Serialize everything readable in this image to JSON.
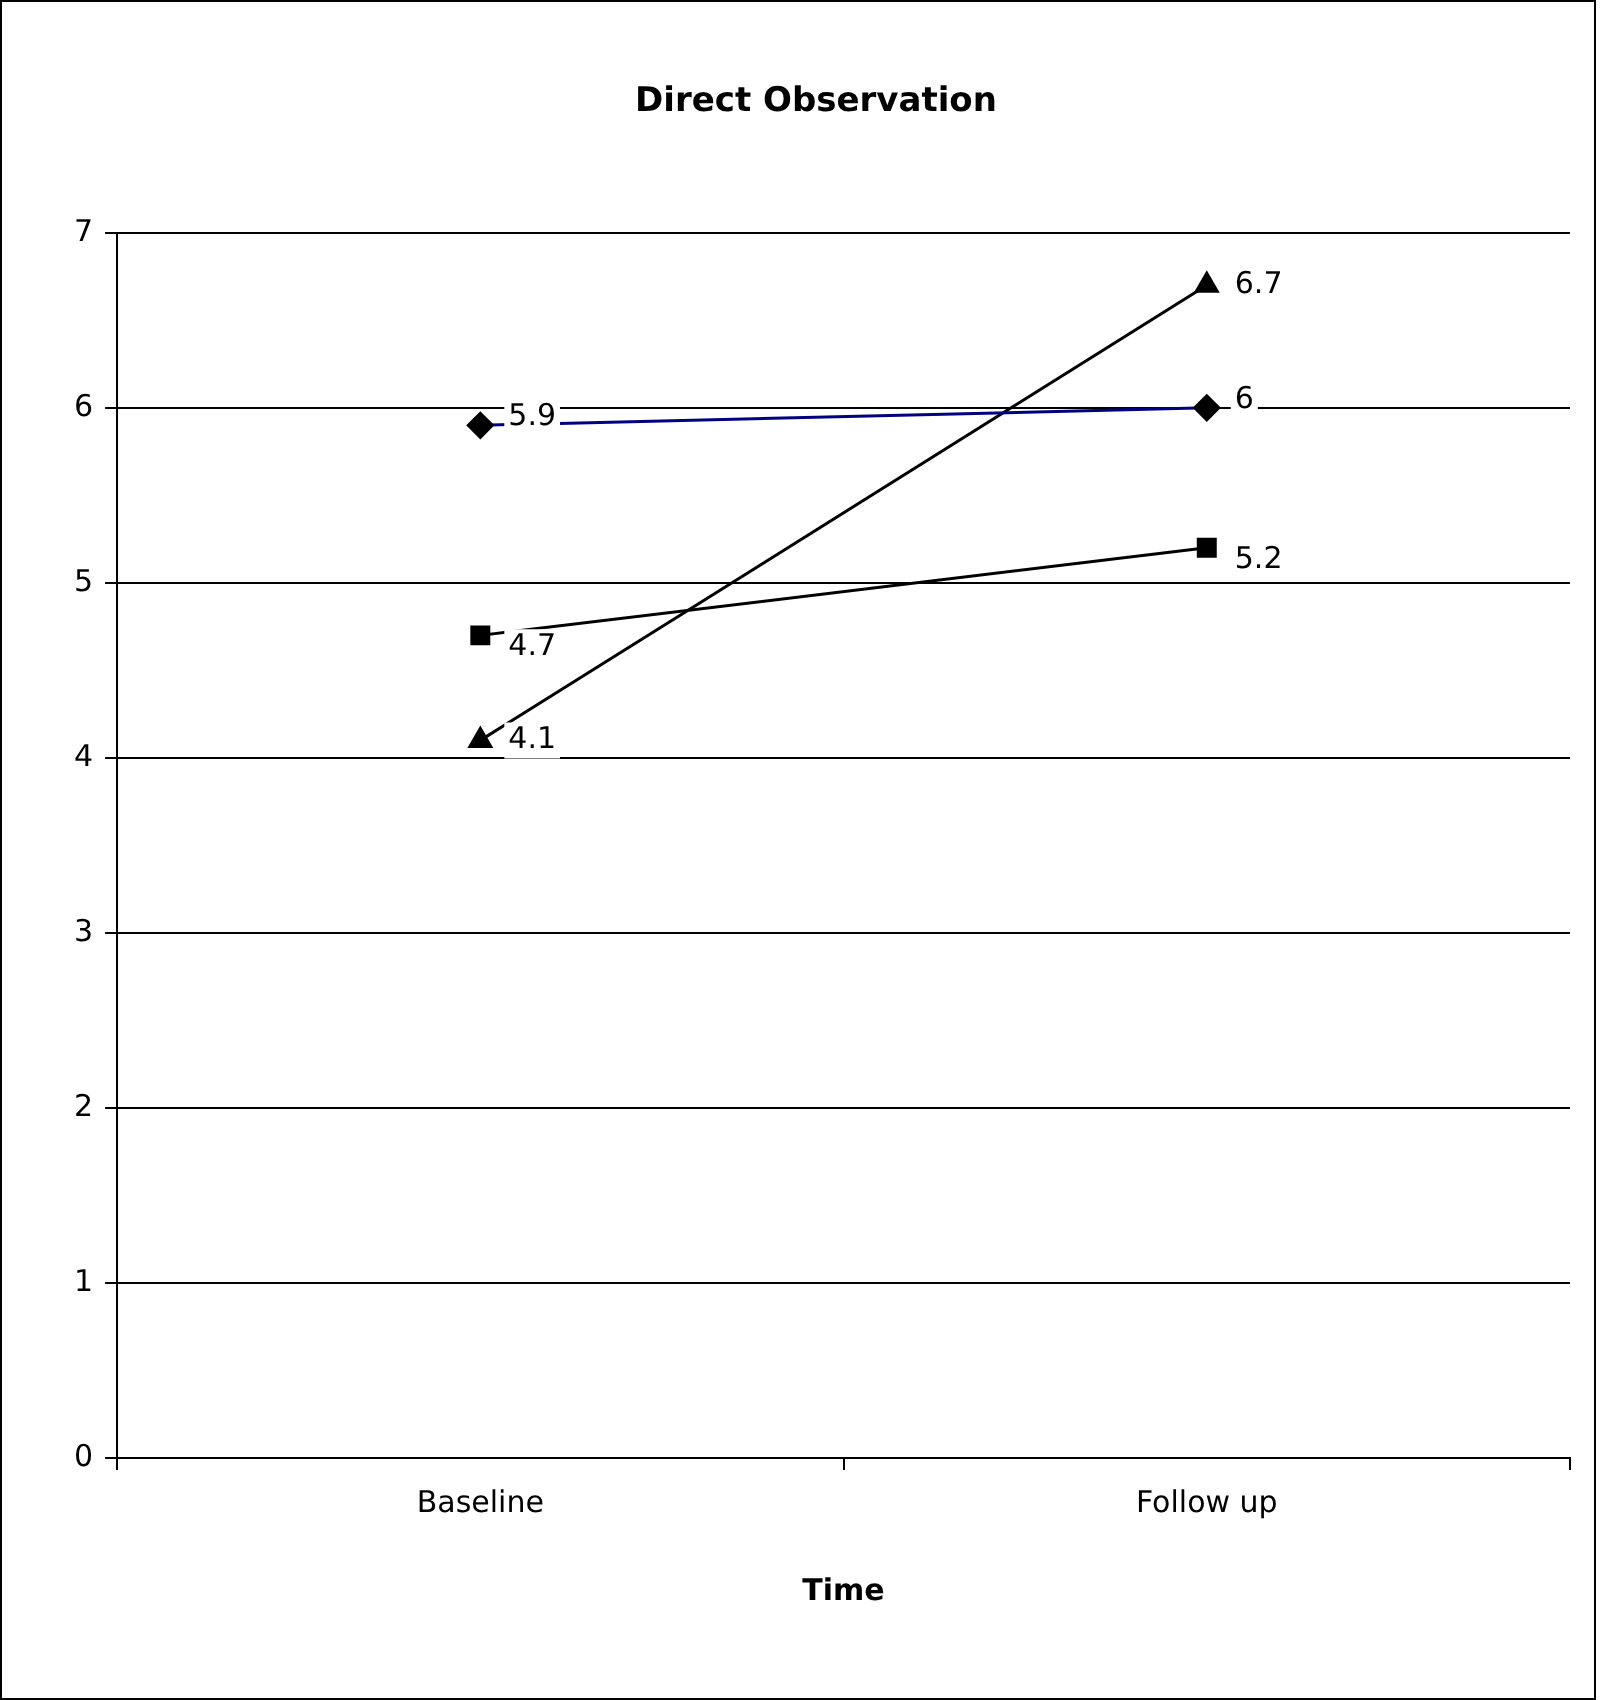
{
  "chart_data": {
    "type": "line",
    "title": "Direct Observation",
    "xlabel": "Time",
    "categories": [
      "Baseline",
      "Follow up"
    ],
    "series": [
      {
        "color": "#000080",
        "values": [
          5.9,
          6
        ],
        "marker": "diamond"
      },
      {
        "color": "#000000",
        "values": [
          4.7,
          5.2
        ],
        "marker": "square"
      },
      {
        "color": "#000000",
        "values": [
          4.1,
          6.7
        ],
        "marker": "triangle"
      }
    ],
    "ylim": [
      0,
      7
    ],
    "yticks": [
      0,
      1,
      2,
      3,
      4,
      5,
      6,
      7
    ],
    "grid": "y",
    "legend": false,
    "data_labels": true,
    "line_style": "solid"
  }
}
